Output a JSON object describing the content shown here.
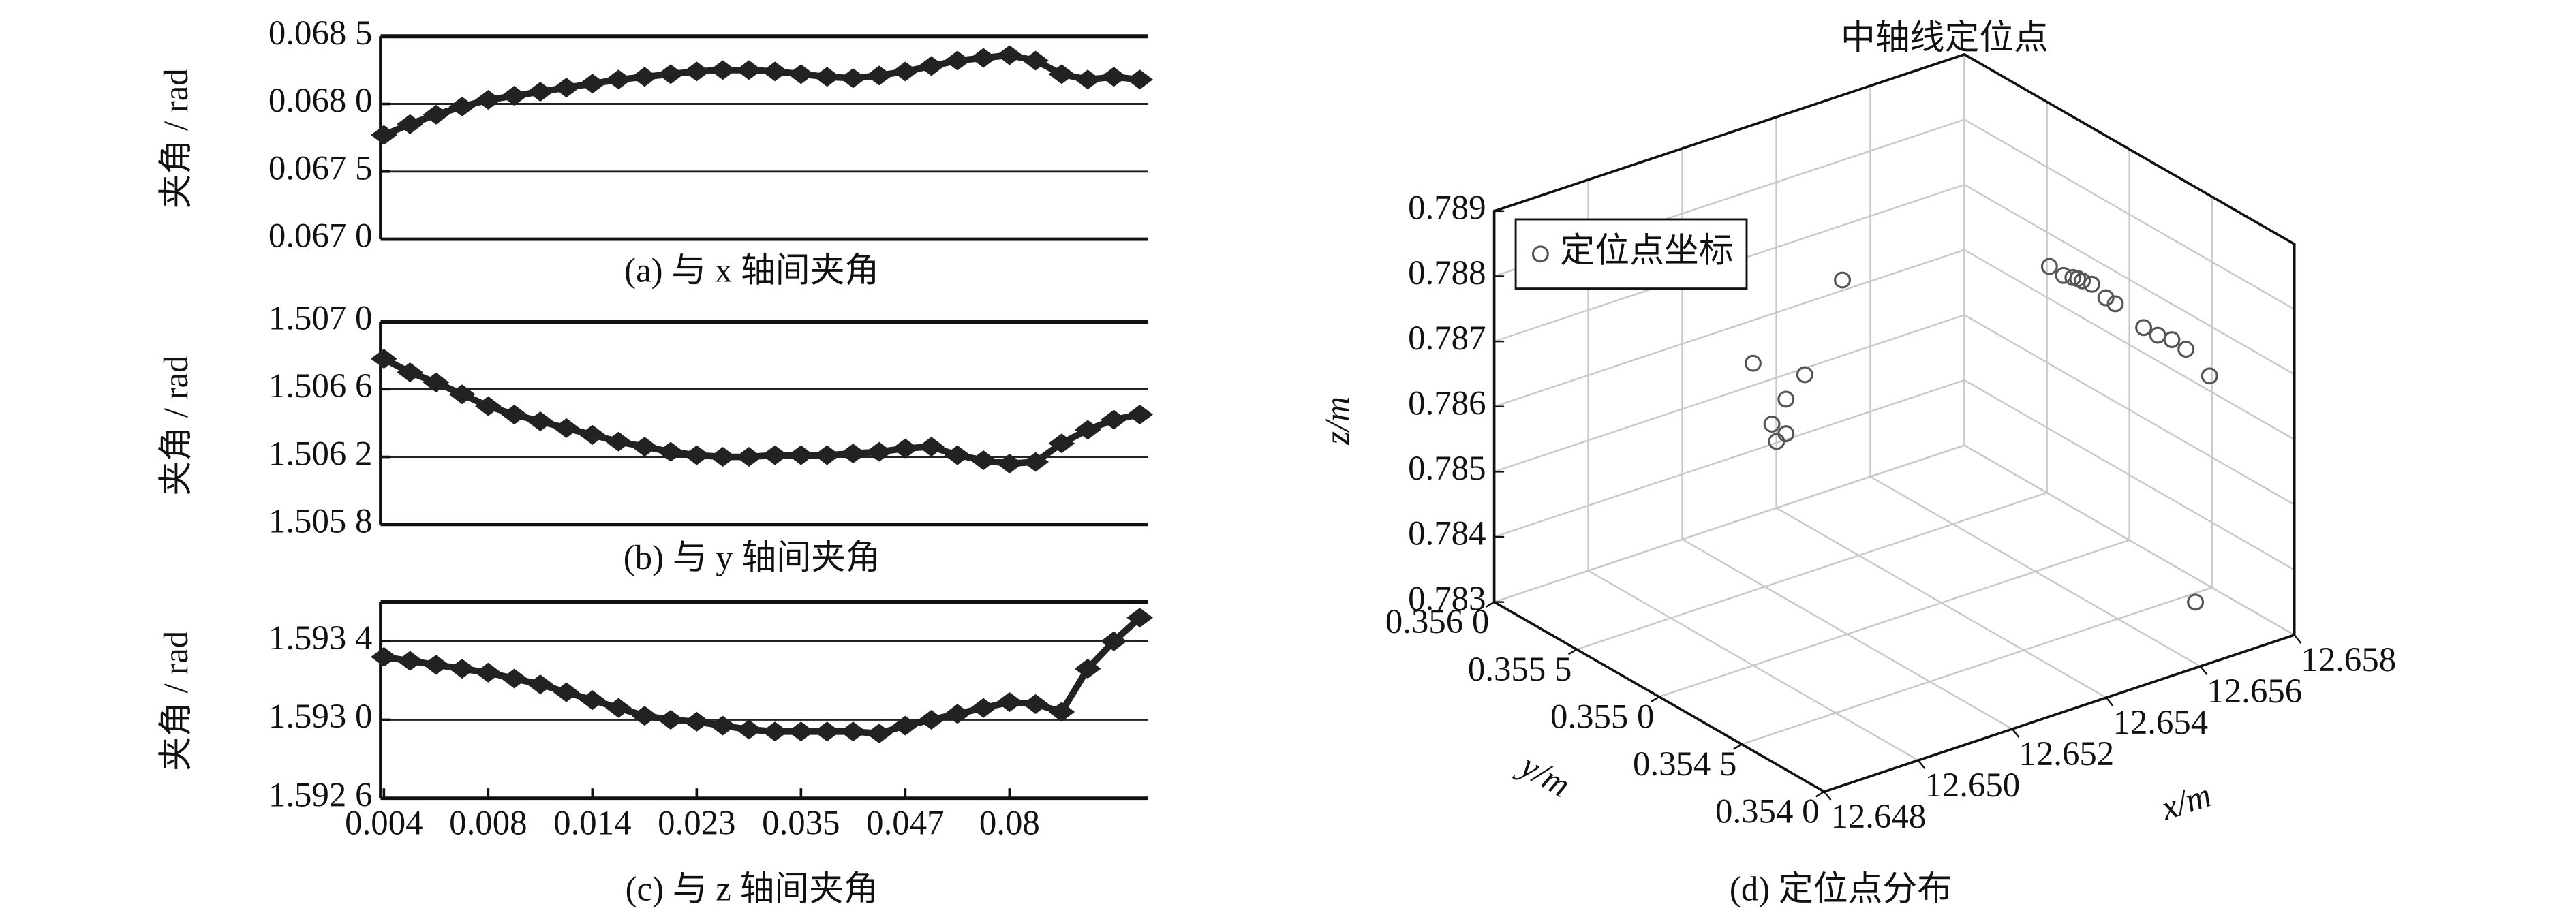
{
  "chart_data": [
    {
      "type": "line",
      "title": "(a) 与 x 轴间夹角",
      "ylabel": "夹角 / rad",
      "color": "#222222",
      "grid": true,
      "ylim": [
        0.067,
        0.0685
      ],
      "yticks": [
        {
          "value": 0.0685,
          "label": "0.068 5"
        },
        {
          "value": 0.068,
          "label": "0.068 0"
        },
        {
          "value": 0.0675,
          "label": "0.067 5"
        },
        {
          "value": 0.067,
          "label": "0.067 0"
        }
      ],
      "values": [
        0.06777,
        0.06785,
        0.06792,
        0.06798,
        0.06803,
        0.06806,
        0.06809,
        0.06812,
        0.06815,
        0.06818,
        0.0682,
        0.06822,
        0.06824,
        0.06825,
        0.06825,
        0.06824,
        0.06822,
        0.0682,
        0.06819,
        0.06821,
        0.06824,
        0.06828,
        0.06832,
        0.06834,
        0.06836,
        0.06832,
        0.06822,
        0.06818,
        0.0682,
        0.06818
      ]
    },
    {
      "type": "line",
      "title": "(b) 与 y 轴间夹角",
      "ylabel": "夹角 / rad",
      "color": "#222222",
      "grid": true,
      "ylim": [
        1.5058,
        1.507
      ],
      "yticks": [
        {
          "value": 1.507,
          "label": "1.507 0"
        },
        {
          "value": 1.5066,
          "label": "1.506 6"
        },
        {
          "value": 1.5062,
          "label": "1.506 2"
        },
        {
          "value": 1.5058,
          "label": "1.505 8"
        }
      ],
      "values": [
        1.50678,
        1.5067,
        1.50664,
        1.50657,
        1.5065,
        1.50645,
        1.50641,
        1.50637,
        1.50633,
        1.50629,
        1.50626,
        1.50623,
        1.50621,
        1.5062,
        1.5062,
        1.50621,
        1.50621,
        1.50621,
        1.50622,
        1.50623,
        1.50625,
        1.50626,
        1.50621,
        1.50618,
        1.50616,
        1.50617,
        1.50628,
        1.50636,
        1.50642,
        1.50645
      ]
    },
    {
      "type": "line",
      "title": "(c) 与 z 轴间夹角",
      "ylabel": "夹角 / rad",
      "color": "#222222",
      "grid": true,
      "ylim": [
        1.5926,
        1.5936
      ],
      "yticks": [
        {
          "value": 1.5934,
          "label": "1.593 4"
        },
        {
          "value": 1.593,
          "label": "1.593 0"
        },
        {
          "value": 1.5926,
          "label": "1.592 6"
        }
      ],
      "categories": [
        "0.004",
        null,
        null,
        null,
        "0.008",
        null,
        null,
        null,
        "0.014",
        null,
        null,
        null,
        "0.023",
        null,
        null,
        null,
        "0.035",
        null,
        null,
        null,
        "0.047",
        null,
        null,
        null,
        "0.08",
        null,
        null,
        null,
        null,
        null
      ],
      "values": [
        1.59332,
        1.5933,
        1.59328,
        1.59326,
        1.59324,
        1.59321,
        1.59318,
        1.59314,
        1.5931,
        1.59306,
        1.59302,
        1.593,
        1.59299,
        1.59297,
        1.59295,
        1.59294,
        1.59294,
        1.59294,
        1.59294,
        1.59293,
        1.59297,
        1.593,
        1.59303,
        1.59306,
        1.59309,
        1.59308,
        1.59304,
        1.59326,
        1.5934,
        1.59352
      ]
    },
    {
      "type": "scatter3d",
      "title": "中轴线定位点",
      "caption": "(d) 定位点分布",
      "xlabel": "x/m",
      "ylabel": "y/m",
      "zlabel": "z/m",
      "grid": true,
      "legend": "upper left",
      "xlim": [
        12.648,
        12.658
      ],
      "ylim": [
        0.354,
        0.356
      ],
      "zlim": [
        0.783,
        0.789
      ],
      "xticks": [
        12.648,
        {
          "value": 12.65,
          "label": "12.650"
        },
        12.652,
        12.654,
        12.656,
        12.658
      ],
      "yticks": [
        {
          "value": 0.354,
          "label": "0.354 0"
        },
        {
          "value": 0.3545,
          "label": "0.354 5"
        },
        {
          "value": 0.355,
          "label": "0.355 0"
        },
        {
          "value": 0.3555,
          "label": "0.355 5"
        },
        {
          "value": 0.356,
          "label": "0.356 0"
        }
      ],
      "zticks": [
        0.783,
        0.784,
        0.785,
        0.786,
        0.787,
        0.788,
        0.789
      ],
      "series": [
        {
          "name": "定位点坐标",
          "color": "#555555",
          "x": [
            12.6563,
            12.6566,
            12.6568,
            12.6569,
            12.657,
            12.6572,
            12.6575,
            12.6577,
            12.6569,
            12.6572,
            12.6575,
            12.6578,
            12.6576,
            12.6533,
            12.6514,
            12.6525,
            12.6521,
            12.6518,
            12.6521,
            12.6519,
            12.6573
          ],
          "y": [
            0.355,
            0.355,
            0.355,
            0.355,
            0.355,
            0.355,
            0.355,
            0.355,
            0.3546,
            0.3546,
            0.3546,
            0.3546,
            0.3544,
            0.3554,
            0.3554,
            0.3554,
            0.3554,
            0.3554,
            0.3554,
            0.3554,
            0.3544
          ],
          "z": [
            0.78761,
            0.7874,
            0.78732,
            0.78728,
            0.78722,
            0.78712,
            0.78684,
            0.7867,
            0.78711,
            0.78692,
            0.78678,
            0.78656,
            0.78649,
            0.78754,
            0.78672,
            0.78628,
            0.786,
            0.78569,
            0.78547,
            0.7854,
            0.78309
          ]
        }
      ]
    }
  ]
}
